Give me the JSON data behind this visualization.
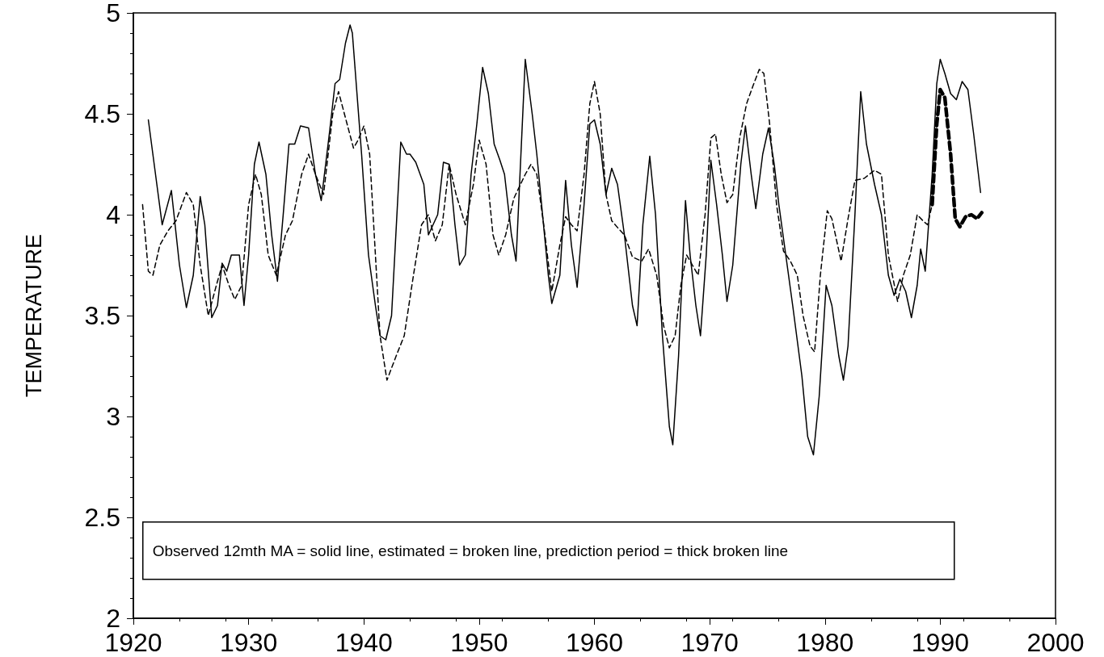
{
  "chart_data": {
    "type": "line",
    "ylabel": "TEMPERATURE",
    "xlim": [
      1920,
      2000
    ],
    "xticks": [
      1920,
      1930,
      1940,
      1950,
      1960,
      1970,
      1980,
      1990,
      2000
    ],
    "ylim": [
      2,
      5
    ],
    "yticks": [
      2,
      2.5,
      3,
      3.5,
      4,
      4.5,
      5
    ],
    "grid": false,
    "marker": "none",
    "annotations": [
      "Observed 12mth MA = solid line, estimated = broken line, prediction period = thick broken line"
    ],
    "series": [
      {
        "color": "#000000",
        "line_style": "solid",
        "x": [
          1921.3,
          1922.5,
          1923.3,
          1924.0,
          1924.6,
          1925.2,
          1925.8,
          1926.2,
          1926.8,
          1927.3,
          1927.7,
          1928.1,
          1928.5,
          1929.2,
          1929.6,
          1930.0,
          1930.5,
          1930.9,
          1931.5,
          1932.0,
          1932.5,
          1933.0,
          1933.5,
          1934.0,
          1934.5,
          1935.2,
          1935.8,
          1936.3,
          1937.0,
          1937.5,
          1937.9,
          1938.4,
          1938.8,
          1939.0,
          1939.8,
          1940.4,
          1941.0,
          1941.4,
          1941.9,
          1942.4,
          1943.2,
          1943.7,
          1944.0,
          1944.5,
          1945.2,
          1945.6,
          1946.4,
          1946.9,
          1947.4,
          1947.9,
          1948.3,
          1948.8,
          1949.3,
          1949.8,
          1950.3,
          1950.8,
          1951.3,
          1951.8,
          1952.2,
          1952.8,
          1953.2,
          1954.0,
          1954.6,
          1955.0,
          1955.5,
          1956.0,
          1956.3,
          1957.0,
          1957.5,
          1958.0,
          1958.5,
          1959.1,
          1959.6,
          1960.0,
          1960.5,
          1961.0,
          1961.5,
          1962.0,
          1962.6,
          1963.3,
          1963.7,
          1964.2,
          1964.8,
          1965.3,
          1965.9,
          1966.5,
          1966.8,
          1967.3,
          1967.9,
          1968.3,
          1968.8,
          1969.2,
          1969.7,
          1970.1,
          1970.6,
          1971.1,
          1971.5,
          1972.0,
          1972.7,
          1973.1,
          1973.6,
          1974.0,
          1974.6,
          1975.1,
          1975.6,
          1976.0,
          1976.6,
          1977.2,
          1978.0,
          1978.5,
          1979.0,
          1979.5,
          1980.1,
          1980.6,
          1981.2,
          1981.6,
          1982.0,
          1982.6,
          1983.1,
          1983.6,
          1984.3,
          1984.9,
          1985.5,
          1986.0,
          1986.5,
          1987.0,
          1987.5,
          1988.0,
          1988.3,
          1988.7,
          1989.3,
          1989.7,
          1990.0,
          1990.4,
          1990.9,
          1991.4,
          1991.9,
          1992.4,
          1992.9,
          1993.5
        ],
        "values": [
          4.47,
          3.95,
          4.12,
          3.75,
          3.54,
          3.7,
          4.09,
          3.95,
          3.49,
          3.55,
          3.76,
          3.72,
          3.8,
          3.8,
          3.55,
          3.8,
          4.25,
          4.36,
          4.2,
          3.9,
          3.67,
          4.0,
          4.35,
          4.35,
          4.44,
          4.43,
          4.2,
          4.07,
          4.4,
          4.65,
          4.67,
          4.85,
          4.94,
          4.9,
          4.3,
          3.8,
          3.55,
          3.4,
          3.38,
          3.5,
          4.36,
          4.3,
          4.3,
          4.26,
          4.15,
          3.9,
          4.0,
          4.26,
          4.25,
          3.95,
          3.75,
          3.8,
          4.2,
          4.45,
          4.73,
          4.6,
          4.35,
          4.27,
          4.2,
          3.9,
          3.77,
          4.77,
          4.5,
          4.3,
          4.0,
          3.7,
          3.56,
          3.7,
          4.17,
          3.85,
          3.64,
          4.05,
          4.45,
          4.47,
          4.35,
          4.1,
          4.23,
          4.15,
          3.9,
          3.55,
          3.45,
          3.95,
          4.29,
          4.0,
          3.4,
          2.95,
          2.86,
          3.3,
          4.07,
          3.8,
          3.55,
          3.4,
          3.8,
          4.27,
          4.05,
          3.8,
          3.57,
          3.75,
          4.25,
          4.44,
          4.2,
          4.03,
          4.3,
          4.43,
          4.25,
          4.05,
          3.8,
          3.55,
          3.2,
          2.9,
          2.81,
          3.1,
          3.65,
          3.55,
          3.3,
          3.18,
          3.35,
          4.0,
          4.61,
          4.35,
          4.15,
          4.0,
          3.7,
          3.6,
          3.68,
          3.62,
          3.49,
          3.65,
          3.83,
          3.72,
          4.2,
          4.65,
          4.77,
          4.7,
          4.6,
          4.57,
          4.66,
          4.62,
          4.4,
          4.11
        ]
      },
      {
        "color": "#000000",
        "line_style": "dashed",
        "x": [
          1920.8,
          1921.3,
          1921.7,
          1922.3,
          1923.0,
          1923.7,
          1924.6,
          1925.2,
          1925.8,
          1926.5,
          1927.2,
          1927.7,
          1928.3,
          1928.8,
          1929.4,
          1930.0,
          1930.6,
          1931.1,
          1931.7,
          1932.4,
          1933.2,
          1933.8,
          1934.6,
          1935.2,
          1935.8,
          1936.5,
          1937.3,
          1937.8,
          1938.4,
          1939.1,
          1939.5,
          1940.0,
          1940.5,
          1941.0,
          1941.4,
          1942.0,
          1942.8,
          1943.5,
          1944.3,
          1945.0,
          1945.6,
          1946.2,
          1946.8,
          1947.4,
          1948.0,
          1948.8,
          1949.5,
          1950.0,
          1950.6,
          1951.2,
          1951.7,
          1952.3,
          1953.0,
          1954.0,
          1954.5,
          1955.0,
          1955.6,
          1956.3,
          1957.0,
          1957.5,
          1958.0,
          1958.5,
          1959.1,
          1959.6,
          1960.0,
          1960.5,
          1961.0,
          1961.5,
          1962.1,
          1962.6,
          1963.3,
          1964.1,
          1964.7,
          1965.4,
          1966.0,
          1966.5,
          1967.0,
          1967.5,
          1968.0,
          1968.5,
          1969.0,
          1969.6,
          1970.1,
          1970.5,
          1971.0,
          1971.5,
          1972.0,
          1972.6,
          1973.2,
          1973.7,
          1974.3,
          1974.7,
          1975.2,
          1975.8,
          1976.4,
          1977.0,
          1977.6,
          1978.1,
          1978.7,
          1979.1,
          1979.6,
          1980.2,
          1980.6,
          1981.4,
          1982.0,
          1982.6,
          1983.4,
          1984.3,
          1984.9,
          1985.5,
          1986.3,
          1986.8,
          1987.4,
          1988.0,
          1988.5,
          1988.9,
          1989.3
        ],
        "values": [
          4.05,
          3.72,
          3.7,
          3.85,
          3.92,
          3.97,
          4.11,
          4.05,
          3.75,
          3.5,
          3.65,
          3.75,
          3.65,
          3.58,
          3.65,
          4.05,
          4.2,
          4.1,
          3.8,
          3.7,
          3.9,
          3.97,
          4.2,
          4.3,
          4.2,
          4.1,
          4.5,
          4.61,
          4.48,
          4.33,
          4.37,
          4.44,
          4.3,
          3.8,
          3.4,
          3.18,
          3.3,
          3.4,
          3.7,
          3.95,
          4.0,
          3.87,
          3.95,
          4.25,
          4.1,
          3.95,
          4.15,
          4.37,
          4.25,
          3.9,
          3.8,
          3.9,
          4.08,
          4.2,
          4.25,
          4.2,
          3.95,
          3.62,
          3.85,
          3.99,
          3.95,
          3.92,
          4.2,
          4.55,
          4.66,
          4.5,
          4.1,
          3.97,
          3.93,
          3.9,
          3.79,
          3.77,
          3.83,
          3.7,
          3.45,
          3.34,
          3.4,
          3.65,
          3.8,
          3.75,
          3.7,
          4.0,
          4.38,
          4.4,
          4.2,
          4.06,
          4.1,
          4.38,
          4.55,
          4.63,
          4.72,
          4.7,
          4.45,
          4.05,
          3.82,
          3.77,
          3.7,
          3.5,
          3.35,
          3.32,
          3.7,
          4.02,
          3.98,
          3.77,
          3.98,
          4.17,
          4.18,
          4.22,
          4.2,
          3.8,
          3.57,
          3.7,
          3.8,
          4.0,
          3.97,
          3.95,
          4.05
        ]
      },
      {
        "color": "#000000",
        "line_style": "dashed",
        "x": [
          1989.3,
          1989.7,
          1990.0,
          1990.4,
          1990.9,
          1991.3,
          1991.7,
          1992.2,
          1992.7,
          1993.2,
          1993.6
        ],
        "values": [
          4.05,
          4.45,
          4.62,
          4.58,
          4.3,
          3.98,
          3.94,
          3.99,
          4.0,
          3.98,
          4.01
        ]
      }
    ]
  }
}
